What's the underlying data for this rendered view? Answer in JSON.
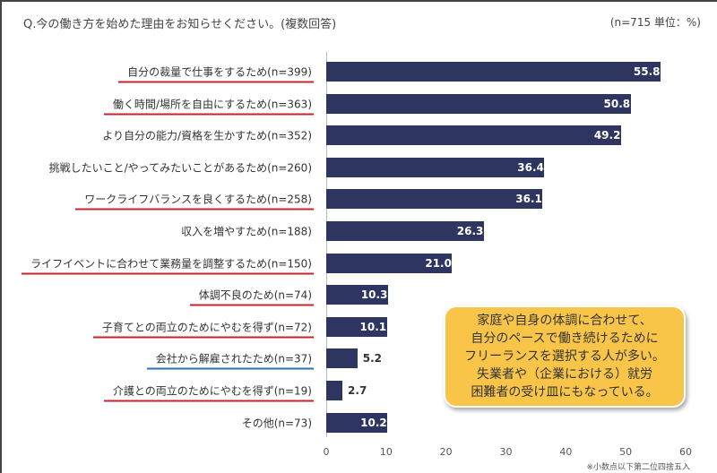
{
  "header": {
    "question": "Q.今の働き方を始めた理由をお知らせください。(複数回答)",
    "unit": "(n=715 単位：%)"
  },
  "chart_data": {
    "type": "bar",
    "orientation": "horizontal",
    "xlim": [
      0,
      60
    ],
    "ticks": [
      0,
      10,
      20,
      30,
      40,
      50,
      60
    ],
    "categories": [
      "自分の裁量で仕事をするため(n=399)",
      "働く時間/場所を自由にするため(n=363)",
      "より自分の能力/資格を生かすため(n=352)",
      "挑戦したいこと/やってみたいことがあるため(n=260)",
      "ワークライフバランスを良くするため(n=258)",
      "収入を増やすため(n=188)",
      "ライフイベントに合わせて業務量を調整するため(n=150)",
      "体調不良のため(n=74)",
      "子育てとの両立のためにやむを得ず(n=72)",
      "会社から解雇されたため(n=37)",
      "介護との両立のためにやむを得ず(n=19)",
      "その他(n=73)"
    ],
    "values": [
      55.8,
      50.8,
      49.2,
      36.4,
      36.1,
      26.3,
      21.0,
      10.3,
      10.1,
      5.2,
      2.7,
      10.2
    ],
    "underline": [
      "red",
      "red",
      "",
      "",
      "red",
      "",
      "red",
      "red",
      "red",
      "blue",
      "red",
      ""
    ],
    "bar_color": "#2e3560",
    "colors": {
      "red": "#c0262d",
      "blue": "#2f6fb5"
    },
    "note": "※小数点以下第二位四捨五入"
  },
  "callout": {
    "lines": [
      "家庭や自身の体調に合わせて、",
      "自分のペースで働き続けるために",
      "フリーランスを選択する人が多い。",
      "失業者や（企業における）就労",
      "困難者の受け皿にもなっている。"
    ]
  }
}
